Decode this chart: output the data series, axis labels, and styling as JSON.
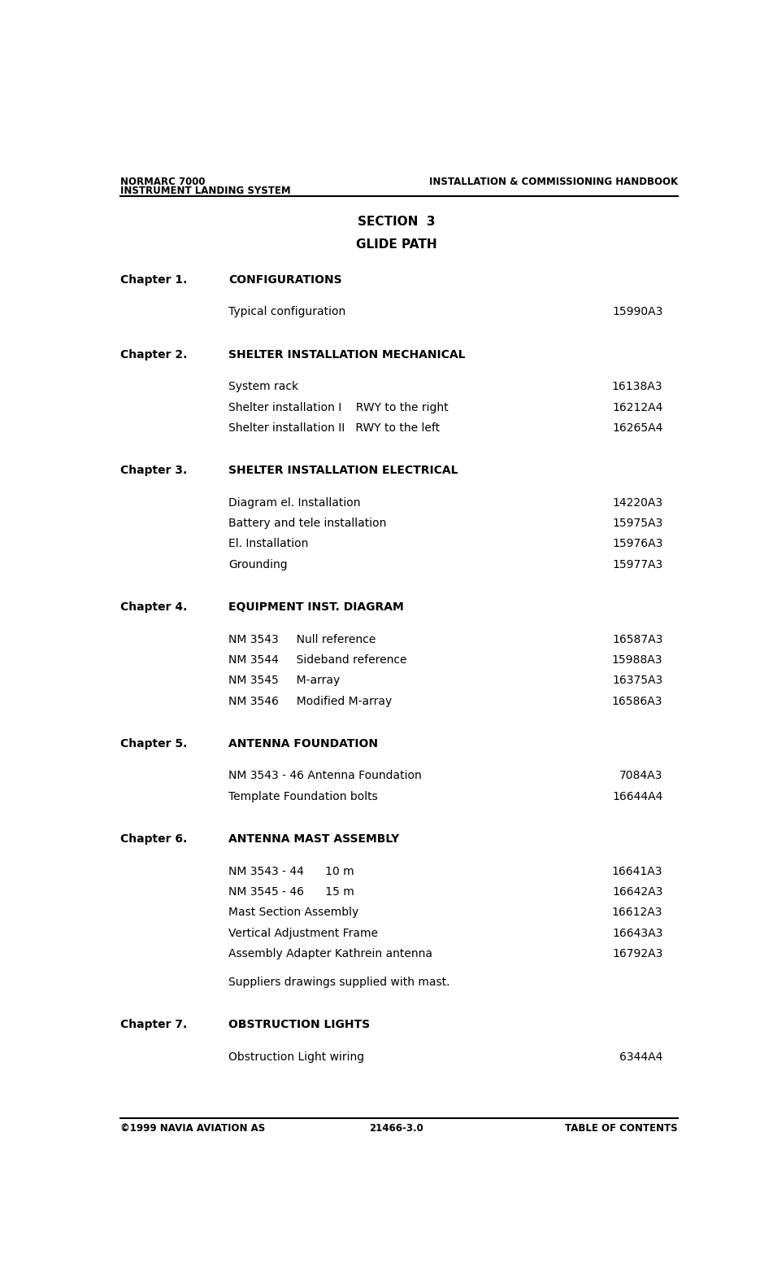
{
  "page_width": 9.51,
  "page_height": 15.79,
  "bg_color": "#ffffff",
  "header_left_line1": "NORMARC 7000",
  "header_left_line2": "INSTRUMENT LANDING SYSTEM",
  "header_right": "INSTALLATION & COMMISSIONING HANDBOOK",
  "section_title": "SECTION  3",
  "section_subtitle": "GLIDE PATH",
  "footer_left": "©1999 NAVIA AVIATION AS",
  "footer_center": "21466-3.0",
  "footer_right": "TABLE OF CONTENTS",
  "chapters": [
    {
      "chapter_label": "Chapter 1.",
      "chapter_title": "CONFIGURATIONS",
      "entries": [
        {
          "text": "Typical configuration",
          "number": "15990A3"
        }
      ],
      "note": null
    },
    {
      "chapter_label": "Chapter 2.",
      "chapter_title": "SHELTER INSTALLATION MECHANICAL",
      "entries": [
        {
          "text": "System rack",
          "number": "16138A3"
        },
        {
          "text": "Shelter installation I    RWY to the right",
          "number": "16212A4"
        },
        {
          "text": "Shelter installation II   RWY to the left",
          "number": "16265A4"
        }
      ],
      "note": null
    },
    {
      "chapter_label": "Chapter 3.",
      "chapter_title": "SHELTER INSTALLATION ELECTRICAL",
      "entries": [
        {
          "text": "Diagram el. Installation",
          "number": "14220A3"
        },
        {
          "text": "Battery and tele installation",
          "number": "15975A3"
        },
        {
          "text": "El. Installation",
          "number": "15976A3"
        },
        {
          "text": "Grounding",
          "number": "15977A3"
        }
      ],
      "note": null
    },
    {
      "chapter_label": "Chapter 4.",
      "chapter_title": "EQUIPMENT INST. DIAGRAM",
      "entries": [
        {
          "text": "NM 3543     Null reference",
          "number": "16587A3"
        },
        {
          "text": "NM 3544     Sideband reference",
          "number": "15988A3"
        },
        {
          "text": "NM 3545     M-array",
          "number": "16375A3"
        },
        {
          "text": "NM 3546     Modified M-array",
          "number": "16586A3"
        }
      ],
      "note": null
    },
    {
      "chapter_label": "Chapter 5.",
      "chapter_title": "ANTENNA FOUNDATION",
      "entries": [
        {
          "text": "NM 3543 - 46 Antenna Foundation",
          "number": "7084A3"
        },
        {
          "text": "Template Foundation bolts",
          "number": "16644A4"
        }
      ],
      "note": null
    },
    {
      "chapter_label": "Chapter 6.",
      "chapter_title": "ANTENNA MAST ASSEMBLY",
      "entries": [
        {
          "text": "NM 3543 - 44      10 m",
          "number": "16641A3"
        },
        {
          "text": "NM 3545 - 46      15 m",
          "number": "16642A3"
        },
        {
          "text": "Mast Section Assembly",
          "number": "16612A3"
        },
        {
          "text": "Vertical Adjustment Frame",
          "number": "16643A3"
        },
        {
          "text": "Assembly Adapter Kathrein antenna",
          "number": "16792A3"
        }
      ],
      "note": "Suppliers drawings supplied with mast."
    },
    {
      "chapter_label": "Chapter 7.",
      "chapter_title": "OBSTRUCTION LIGHTS",
      "entries": [
        {
          "text": "Obstruction Light wiring",
          "number": "6344A4"
        }
      ],
      "note": null
    }
  ]
}
